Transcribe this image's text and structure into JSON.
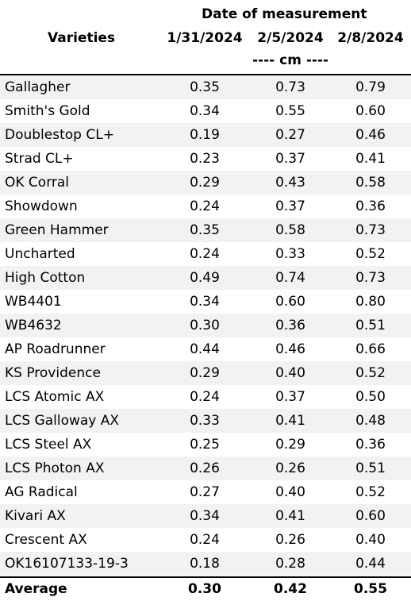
{
  "header": {
    "varieties_label": "Varieties",
    "date_title": "Date of measurement",
    "dates": [
      "1/31/2024",
      "2/5/2024",
      "2/8/2024"
    ],
    "unit": "---- cm ----"
  },
  "rows": [
    {
      "name": "Gallagher",
      "values": [
        "0.35",
        "0.73",
        "0.79"
      ]
    },
    {
      "name": "Smith's Gold",
      "values": [
        "0.34",
        "0.55",
        "0.60"
      ]
    },
    {
      "name": "Doublestop CL+",
      "values": [
        "0.19",
        "0.27",
        "0.46"
      ]
    },
    {
      "name": "Strad CL+",
      "values": [
        "0.23",
        "0.37",
        "0.41"
      ]
    },
    {
      "name": "OK Corral",
      "values": [
        "0.29",
        "0.43",
        "0.58"
      ]
    },
    {
      "name": "Showdown",
      "values": [
        "0.24",
        "0.37",
        "0.36"
      ]
    },
    {
      "name": "Green Hammer",
      "values": [
        "0.35",
        "0.58",
        "0.73"
      ]
    },
    {
      "name": "Uncharted",
      "values": [
        "0.24",
        "0.33",
        "0.52"
      ]
    },
    {
      "name": "High Cotton",
      "values": [
        "0.49",
        "0.74",
        "0.73"
      ]
    },
    {
      "name": "WB4401",
      "values": [
        "0.34",
        "0.60",
        "0.80"
      ]
    },
    {
      "name": "WB4632",
      "values": [
        "0.30",
        "0.36",
        "0.51"
      ]
    },
    {
      "name": "AP Roadrunner",
      "values": [
        "0.44",
        "0.46",
        "0.66"
      ]
    },
    {
      "name": "KS Providence",
      "values": [
        "0.29",
        "0.40",
        "0.52"
      ]
    },
    {
      "name": "LCS Atomic AX",
      "values": [
        "0.24",
        "0.37",
        "0.50"
      ]
    },
    {
      "name": "LCS Galloway AX",
      "values": [
        "0.33",
        "0.41",
        "0.48"
      ]
    },
    {
      "name": "LCS Steel AX",
      "values": [
        "0.25",
        "0.29",
        "0.36"
      ]
    },
    {
      "name": "LCS Photon AX",
      "values": [
        "0.26",
        "0.26",
        "0.51"
      ]
    },
    {
      "name": "AG Radical",
      "values": [
        "0.27",
        "0.40",
        "0.52"
      ]
    },
    {
      "name": "Kivari AX",
      "values": [
        "0.34",
        "0.41",
        "0.60"
      ]
    },
    {
      "name": "Crescent AX",
      "values": [
        "0.24",
        "0.26",
        "0.40"
      ]
    },
    {
      "name": "OK16107133-19-3",
      "values": [
        "0.18",
        "0.28",
        "0.44"
      ]
    }
  ],
  "average": {
    "name": "Average",
    "values": [
      "0.30",
      "0.42",
      "0.55"
    ]
  },
  "colors": {
    "shade": "#f2f2f2",
    "rule": "#000000"
  }
}
